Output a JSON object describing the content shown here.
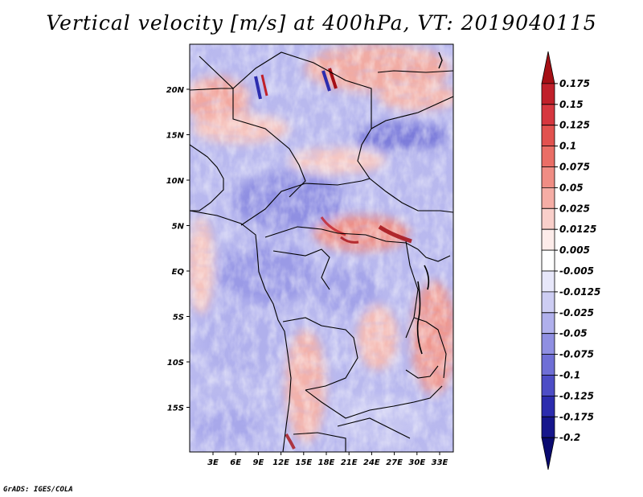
{
  "title": "Vertical velocity [m/s] at 400hPa, VT: 2019040115",
  "credit": "GrADS: IGES/COLA",
  "chart_data": {
    "type": "heatmap",
    "variable": "Vertical velocity",
    "units": "m/s",
    "level": "400hPa",
    "valid_time": "2019040115",
    "x_ticks": [
      "3E",
      "6E",
      "9E",
      "12E",
      "15E",
      "18E",
      "21E",
      "24E",
      "27E",
      "30E",
      "33E"
    ],
    "y_ticks": [
      "20N",
      "15N",
      "10N",
      "5N",
      "EQ",
      "5S",
      "10S",
      "15S"
    ],
    "colorbar": {
      "labels": [
        "0.175",
        "0.15",
        "0.125",
        "0.1",
        "0.075",
        "0.05",
        "0.025",
        "0.0125",
        "0.005",
        "-0.005",
        "-0.0125",
        "-0.025",
        "-0.05",
        "-0.075",
        "-0.1",
        "-0.125",
        "-0.175",
        "-0.2"
      ],
      "colors": [
        "#a50f15",
        "#c0202a",
        "#d6373f",
        "#e2524f",
        "#ea6e66",
        "#f08d84",
        "#f5ada5",
        "#f9cfca",
        "#fdecea",
        "#ffffff",
        "#e7e7fa",
        "#cdcdf3",
        "#b0b0ec",
        "#8f8fe2",
        "#6f6fd6",
        "#4d4dc6",
        "#2c2cae",
        "#16168c",
        "#0a0a70"
      ]
    }
  }
}
